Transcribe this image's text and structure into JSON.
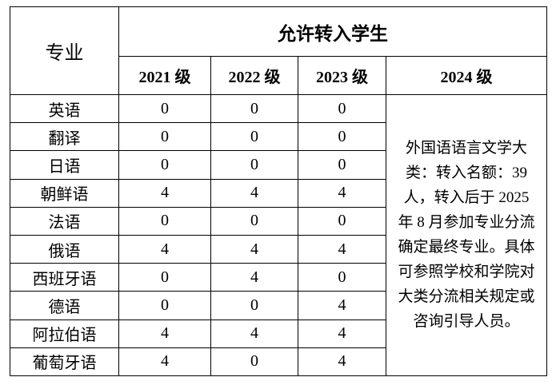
{
  "header": {
    "major": "专业",
    "group": "允许转入学生",
    "years": [
      "2021 级",
      "2022 级",
      "2023 级",
      "2024 级"
    ]
  },
  "rows": [
    {
      "major": "英语",
      "values": [
        0,
        0,
        0
      ]
    },
    {
      "major": "翻译",
      "values": [
        0,
        0,
        0
      ]
    },
    {
      "major": "日语",
      "values": [
        0,
        0,
        0
      ]
    },
    {
      "major": "朝鲜语",
      "values": [
        4,
        4,
        4
      ]
    },
    {
      "major": "法语",
      "values": [
        0,
        0,
        0
      ]
    },
    {
      "major": "俄语",
      "values": [
        4,
        4,
        4
      ]
    },
    {
      "major": "西班牙语",
      "values": [
        0,
        4,
        0
      ]
    },
    {
      "major": "德语",
      "values": [
        0,
        0,
        4
      ]
    },
    {
      "major": "阿拉伯语",
      "values": [
        4,
        4,
        4
      ]
    },
    {
      "major": "葡萄牙语",
      "values": [
        4,
        0,
        4
      ]
    }
  ],
  "note": "外国语语言文学大类：转入名额：39 人，转入后于 2025 年 8 月参加专业分流确定最终专业。具体可参照学校和学院对大类分流相关规定或咨询引导人员。"
}
